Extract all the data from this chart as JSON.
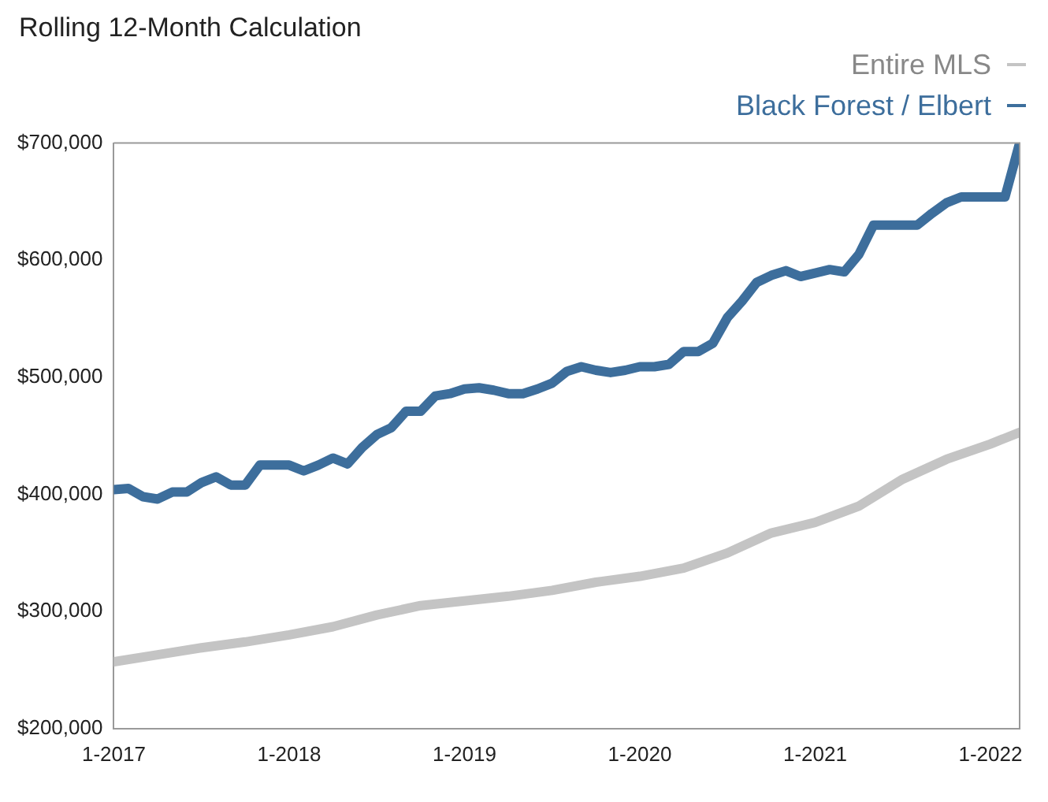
{
  "chart_data": {
    "type": "line",
    "title": "Rolling 12-Month Calculation",
    "legend": "top right",
    "line_style": "solid",
    "xlim": [
      "2017-01",
      "2022-03"
    ],
    "xticks": [
      {
        "value": "2017-01",
        "label": "1-2017"
      },
      {
        "value": "2018-01",
        "label": "1-2018"
      },
      {
        "value": "2019-01",
        "label": "1-2019"
      },
      {
        "value": "2020-01",
        "label": "1-2020"
      },
      {
        "value": "2021-01",
        "label": "1-2021"
      },
      {
        "value": "2022-01",
        "label": "1-2022"
      }
    ],
    "ylim": [
      200000,
      700000
    ],
    "yticks": [
      {
        "value": 200000,
        "label": "$200,000"
      },
      {
        "value": 300000,
        "label": "$300,000"
      },
      {
        "value": 400000,
        "label": "$400,000"
      },
      {
        "value": 500000,
        "label": "$500,000"
      },
      {
        "value": 600000,
        "label": "$600,000"
      },
      {
        "value": 700000,
        "label": "$700,000"
      }
    ],
    "series": [
      {
        "name": "Entire MLS",
        "color": "#c4c4c4",
        "x": [
          "2017-01",
          "2017-04",
          "2017-07",
          "2017-10",
          "2018-01",
          "2018-04",
          "2018-07",
          "2018-10",
          "2019-01",
          "2019-04",
          "2019-07",
          "2019-10",
          "2020-01",
          "2020-04",
          "2020-07",
          "2020-10",
          "2021-01",
          "2021-04",
          "2021-07",
          "2021-10",
          "2022-01",
          "2022-03"
        ],
        "values": [
          257000,
          263000,
          269000,
          274000,
          280000,
          287000,
          297000,
          305000,
          309000,
          313000,
          318000,
          325000,
          330000,
          337000,
          350000,
          367000,
          376000,
          390000,
          413000,
          430000,
          443000,
          453000
        ]
      },
      {
        "name": "Black Forest / Elbert",
        "color": "#3d6e9c",
        "x": [
          "2017-01",
          "2017-02",
          "2017-03",
          "2017-04",
          "2017-05",
          "2017-06",
          "2017-07",
          "2017-08",
          "2017-09",
          "2017-10",
          "2017-11",
          "2017-12",
          "2018-01",
          "2018-02",
          "2018-03",
          "2018-04",
          "2018-05",
          "2018-06",
          "2018-07",
          "2018-08",
          "2018-09",
          "2018-10",
          "2018-11",
          "2018-12",
          "2019-01",
          "2019-02",
          "2019-03",
          "2019-04",
          "2019-05",
          "2019-06",
          "2019-07",
          "2019-08",
          "2019-09",
          "2019-10",
          "2019-11",
          "2019-12",
          "2020-01",
          "2020-02",
          "2020-03",
          "2020-04",
          "2020-05",
          "2020-06",
          "2020-07",
          "2020-08",
          "2020-09",
          "2020-10",
          "2020-11",
          "2020-12",
          "2021-01",
          "2021-02",
          "2021-03",
          "2021-04",
          "2021-05",
          "2021-06",
          "2021-07",
          "2021-08",
          "2021-09",
          "2021-10",
          "2021-11",
          "2021-12",
          "2022-01",
          "2022-02",
          "2022-03"
        ],
        "values": [
          404000,
          405000,
          398000,
          396000,
          402000,
          402000,
          410000,
          415000,
          408000,
          408000,
          425000,
          425000,
          425000,
          420000,
          425000,
          431000,
          426000,
          440000,
          451000,
          457000,
          471000,
          471000,
          484000,
          486000,
          490000,
          491000,
          489000,
          486000,
          486000,
          490000,
          495000,
          505000,
          509000,
          506000,
          504000,
          506000,
          509000,
          509000,
          511000,
          522000,
          522000,
          529000,
          551000,
          565000,
          581000,
          587000,
          591000,
          586000,
          589000,
          592000,
          590000,
          605000,
          630000,
          630000,
          630000,
          630000,
          640000,
          649000,
          654000,
          654000,
          654000,
          654000,
          700000
        ]
      }
    ]
  }
}
